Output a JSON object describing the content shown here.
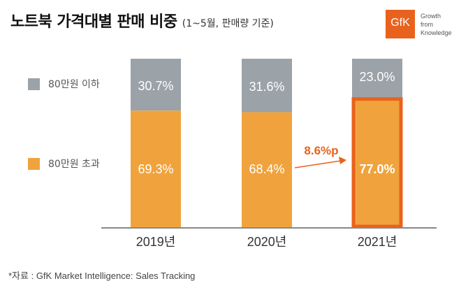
{
  "title": "노트북 가격대별 판매 비중",
  "subtitle": "(1~5월, 판매량 기준)",
  "logo": {
    "text": "GfK",
    "tagline": [
      "Growth",
      "from",
      "Knowledge"
    ],
    "color": "#e9621d"
  },
  "footer": "*자료 : GfK Market Intelligence: Sales Tracking",
  "chart_data": {
    "type": "bar",
    "stacked": true,
    "unit": "%",
    "title": "노트북 가격대별 판매 비중 (1~5월, 판매량 기준)",
    "categories": [
      "2019년",
      "2020년",
      "2021년"
    ],
    "series": [
      {
        "name": "80만원 초과",
        "color": "#f0a33c",
        "values": [
          69.3,
          68.4,
          77.0
        ],
        "labels": [
          "69.3%",
          "68.4%",
          "77.0%"
        ]
      },
      {
        "name": "80만원 이하",
        "color": "#9ba2a8",
        "values": [
          30.7,
          31.6,
          23.0
        ],
        "labels": [
          "30.7%",
          "31.6%",
          "23.0%"
        ]
      }
    ],
    "legend": [
      "80만원 이하",
      "80만원 초과"
    ],
    "legend_position": "left",
    "ylim": [
      0,
      100
    ],
    "highlight": {
      "category": "2021년",
      "series": "80만원 초과",
      "border_color": "#e9621d"
    },
    "annotation": {
      "text": "8.6%p",
      "from": "2020년",
      "to": "2021년",
      "color": "#e9621d"
    }
  }
}
